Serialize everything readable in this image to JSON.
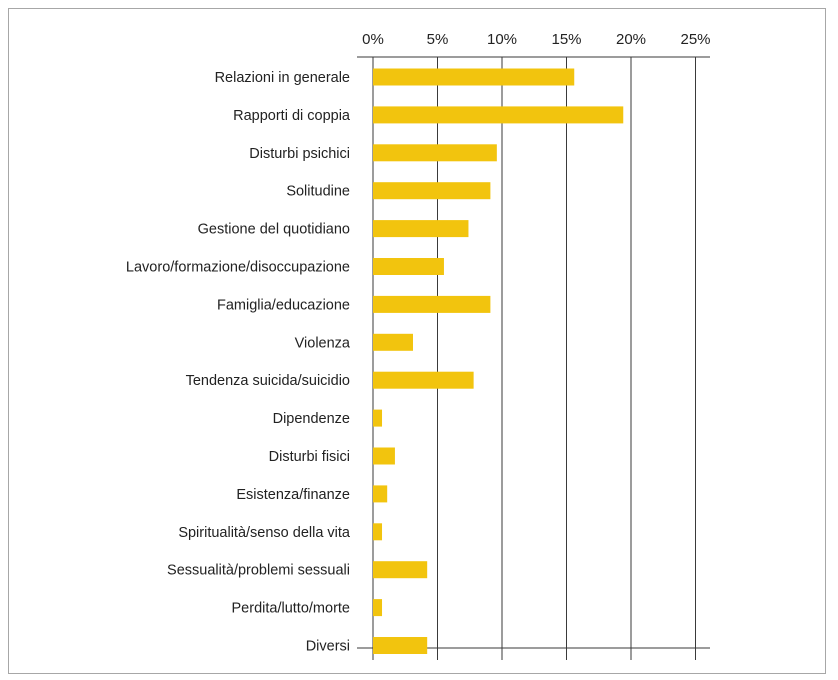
{
  "colors": {
    "bar": "#f2c40e",
    "grid": "#3a3a3a",
    "text": "#222222",
    "frame": "#a7a7a7"
  },
  "chart_data": {
    "type": "bar",
    "orientation": "horizontal",
    "title": "",
    "xlabel": "",
    "ylabel": "",
    "xlim": [
      0,
      25
    ],
    "x_ticks": [
      "0%",
      "5%",
      "10%",
      "15%",
      "20%",
      "25%"
    ],
    "x_tick_values": [
      0,
      5,
      10,
      15,
      20,
      25
    ],
    "grid": true,
    "legend": "none",
    "categories": [
      "Relazioni in generale",
      "Rapporti di coppia",
      "Disturbi psichici",
      "Solitudine",
      "Gestione del quotidiano",
      "Lavoro/formazione/disoccupazione",
      "Famiglia/educazione",
      "Violenza",
      "Tendenza suicida/suicidio",
      "Dipendenze",
      "Disturbi fisici",
      "Esistenza/finanze",
      "Spiritualità/senso della vita",
      "Sessualità/problemi sessuali",
      "Perdita/lutto/morte",
      "Diversi"
    ],
    "values": [
      15.6,
      19.4,
      9.6,
      9.1,
      7.4,
      5.5,
      9.1,
      3.1,
      7.8,
      0.7,
      1.7,
      1.1,
      0.7,
      4.2,
      0.7,
      4.2
    ]
  }
}
